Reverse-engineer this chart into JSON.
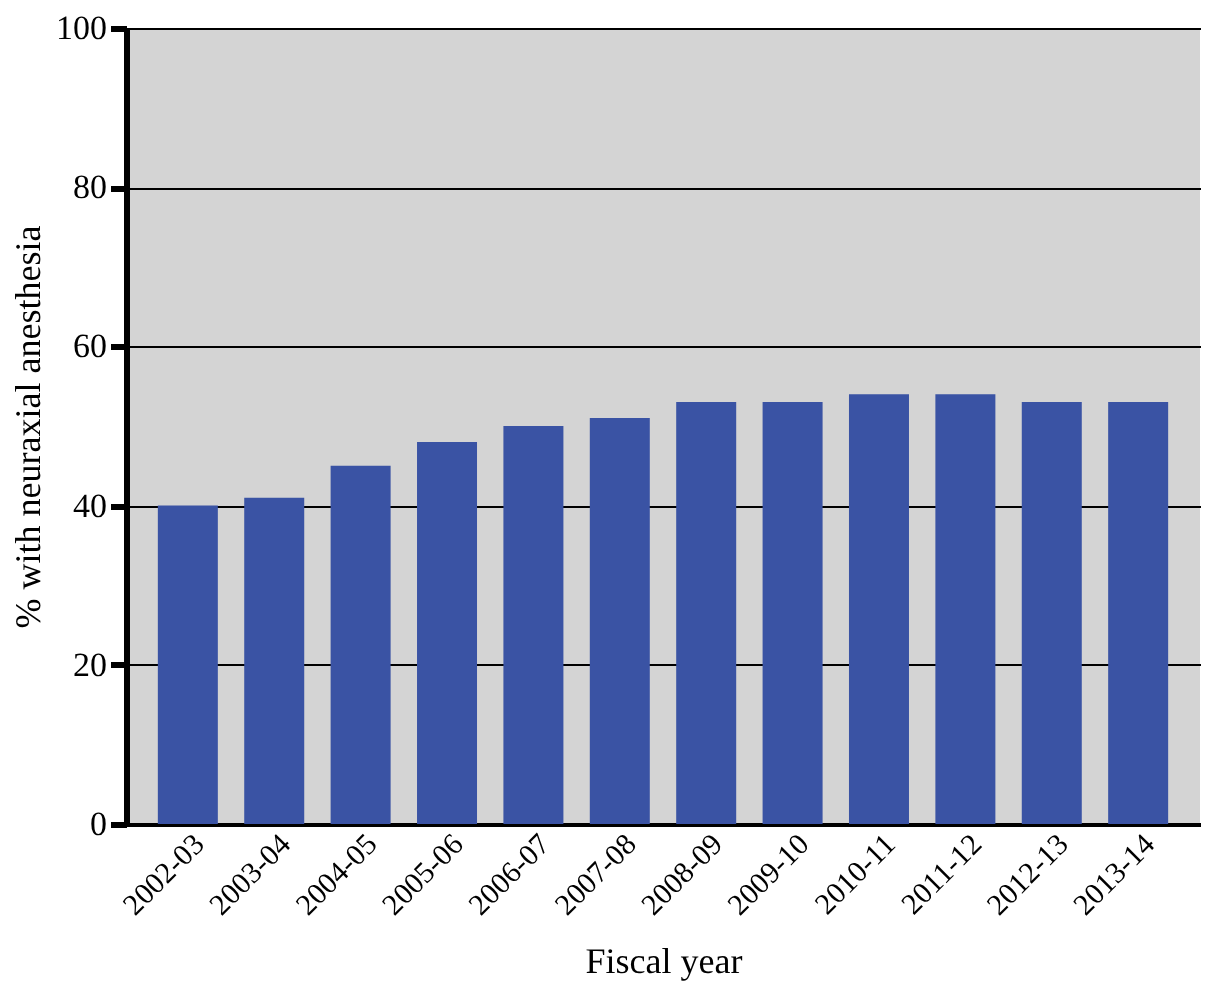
{
  "chart_data": {
    "type": "bar",
    "xlabel": "Fiscal year",
    "ylabel": "% with neuraxial anesthesia",
    "categories": [
      "2002-03",
      "2003-04",
      "2004-05",
      "2005-06",
      "2006-07",
      "2007-08",
      "2008-09",
      "2009-10",
      "2010-11",
      "2011-12",
      "2012-13",
      "2013-14"
    ],
    "values": [
      40,
      41,
      45,
      48,
      50,
      51,
      53,
      53,
      54,
      54,
      53,
      53
    ],
    "color": "#3a53a4",
    "ylim": [
      0,
      100
    ],
    "yticks": [
      0,
      20,
      40,
      60,
      80,
      100
    ],
    "grid": "y"
  }
}
